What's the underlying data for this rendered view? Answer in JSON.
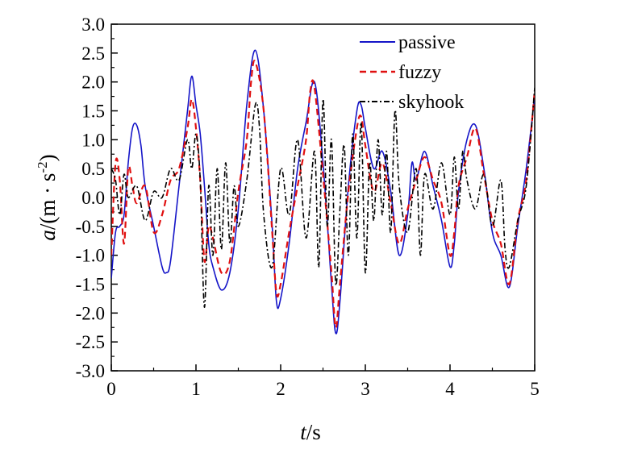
{
  "chart_data": {
    "type": "line",
    "xlabel": "t/s",
    "ylabel": "a/(m·s^-2)",
    "xlim": [
      0,
      5
    ],
    "ylim": [
      -3.0,
      3.0
    ],
    "xticks": [
      "0",
      "1",
      "2",
      "3",
      "4",
      "5"
    ],
    "yticks": [
      "-3.0",
      "-2.5",
      "-2.0",
      "-1.5",
      "-1.0",
      "-0.5",
      "0.0",
      "0.5",
      "1.0",
      "1.5",
      "2.0",
      "2.5",
      "3.0"
    ],
    "grid": false,
    "legend_position": "top-right",
    "series": [
      {
        "name": "passive",
        "color": "#1515c8",
        "style": "solid",
        "x": [
          0,
          0.05,
          0.1,
          0.15,
          0.2,
          0.25,
          0.3,
          0.35,
          0.4,
          0.5,
          0.6,
          0.65,
          0.7,
          0.8,
          0.9,
          0.95,
          1.0,
          1.05,
          1.1,
          1.15,
          1.2,
          1.3,
          1.4,
          1.5,
          1.6,
          1.7,
          1.8,
          1.9,
          1.95,
          2.0,
          2.1,
          2.2,
          2.3,
          2.4,
          2.5,
          2.6,
          2.65,
          2.7,
          2.8,
          2.9,
          2.95,
          3.0,
          3.1,
          3.2,
          3.3,
          3.4,
          3.5,
          3.55,
          3.6,
          3.7,
          3.8,
          3.9,
          4.0,
          4.05,
          4.1,
          4.2,
          4.3,
          4.4,
          4.5,
          4.6,
          4.7,
          4.8,
          4.9,
          5.0
        ],
        "y": [
          -1.4,
          -0.6,
          -0.5,
          -0.3,
          0.6,
          1.2,
          1.25,
          0.9,
          0.2,
          -0.5,
          -1.2,
          -1.3,
          -1.1,
          0.2,
          1.5,
          2.1,
          1.6,
          1.1,
          0.2,
          -0.8,
          -1.2,
          -1.6,
          -1.3,
          -0.2,
          1.6,
          2.55,
          1.5,
          -0.5,
          -1.8,
          -1.75,
          -0.8,
          0.5,
          1.3,
          2.0,
          0.6,
          -1.5,
          -2.35,
          -1.8,
          0.2,
          1.5,
          1.6,
          1.2,
          0.5,
          0.8,
          0.1,
          -1.0,
          -0.3,
          0.6,
          0.3,
          0.8,
          0.2,
          -0.4,
          -1.2,
          -0.8,
          0.1,
          1.0,
          1.25,
          0.5,
          -0.6,
          -1.0,
          -1.55,
          -0.5,
          0.5,
          1.75
        ]
      },
      {
        "name": "fuzzy",
        "color": "#e01010",
        "style": "dashed",
        "x": [
          0,
          0.05,
          0.1,
          0.15,
          0.2,
          0.25,
          0.3,
          0.4,
          0.5,
          0.6,
          0.7,
          0.8,
          0.9,
          0.95,
          1.0,
          1.05,
          1.1,
          1.15,
          1.2,
          1.3,
          1.4,
          1.5,
          1.6,
          1.65,
          1.7,
          1.8,
          1.9,
          1.95,
          2.0,
          2.1,
          2.2,
          2.3,
          2.35,
          2.4,
          2.5,
          2.6,
          2.65,
          2.7,
          2.8,
          2.9,
          2.95,
          3.0,
          3.1,
          3.2,
          3.3,
          3.4,
          3.5,
          3.6,
          3.7,
          3.8,
          3.9,
          4.0,
          4.05,
          4.1,
          4.2,
          4.3,
          4.4,
          4.5,
          4.6,
          4.7,
          4.8,
          4.9,
          5.0
        ],
        "y": [
          -1.0,
          0.6,
          0.3,
          -0.8,
          0.5,
          0.2,
          -0.1,
          0.2,
          -0.6,
          -0.3,
          0.3,
          0.5,
          1.2,
          1.7,
          1.2,
          0.3,
          -1.1,
          -0.5,
          -0.7,
          -1.3,
          -1.1,
          0.1,
          1.0,
          2.0,
          2.35,
          1.5,
          -0.6,
          -1.65,
          -1.5,
          -0.6,
          0.2,
          1.0,
          1.85,
          1.9,
          0.4,
          -1.3,
          -2.25,
          -1.5,
          0.1,
          1.2,
          1.4,
          0.9,
          0.1,
          0.6,
          -0.1,
          -0.8,
          -0.2,
          0.3,
          0.7,
          0.3,
          -0.1,
          -1.0,
          -0.6,
          0.2,
          0.7,
          1.2,
          0.4,
          -0.4,
          -0.8,
          -1.5,
          -0.4,
          0.3,
          1.85
        ]
      },
      {
        "name": "skyhook",
        "color": "#000000",
        "style": "dashdot",
        "x": [
          0,
          0.05,
          0.1,
          0.15,
          0.2,
          0.3,
          0.4,
          0.5,
          0.6,
          0.7,
          0.8,
          0.9,
          0.95,
          1.0,
          1.05,
          1.1,
          1.15,
          1.2,
          1.25,
          1.3,
          1.35,
          1.4,
          1.45,
          1.5,
          1.6,
          1.7,
          1.75,
          1.8,
          1.9,
          2.0,
          2.1,
          2.2,
          2.3,
          2.4,
          2.45,
          2.5,
          2.55,
          2.6,
          2.65,
          2.7,
          2.75,
          2.8,
          2.85,
          2.9,
          2.95,
          3.0,
          3.05,
          3.1,
          3.15,
          3.2,
          3.25,
          3.3,
          3.35,
          3.4,
          3.5,
          3.6,
          3.65,
          3.7,
          3.8,
          3.9,
          4.0,
          4.05,
          4.1,
          4.15,
          4.2,
          4.3,
          4.4,
          4.5,
          4.6,
          4.65,
          4.7,
          4.8,
          4.9,
          5.0
        ],
        "y": [
          0.5,
          0.3,
          -0.3,
          0.4,
          0.0,
          0.2,
          -0.4,
          0.1,
          0.0,
          0.5,
          0.3,
          1.0,
          0.5,
          1.1,
          0.3,
          -1.9,
          0.2,
          -1.0,
          0.5,
          -0.9,
          0.6,
          -0.8,
          0.2,
          -0.5,
          0.3,
          1.6,
          1.2,
          -0.3,
          -1.2,
          0.5,
          -0.3,
          1.0,
          -0.7,
          0.8,
          -1.2,
          1.7,
          -0.5,
          1.0,
          -1.5,
          -0.2,
          0.9,
          -1.0,
          1.1,
          -0.7,
          1.3,
          -1.3,
          0.6,
          -0.4,
          1.0,
          -0.3,
          0.8,
          -0.6,
          1.5,
          0.2,
          -0.6,
          0.5,
          -1.0,
          0.4,
          -0.2,
          0.6,
          -0.3,
          0.7,
          -0.2,
          0.8,
          0.3,
          -0.2,
          0.4,
          -0.5,
          0.3,
          -0.9,
          -1.2,
          -0.4,
          0.2,
          1.9
        ]
      }
    ]
  }
}
